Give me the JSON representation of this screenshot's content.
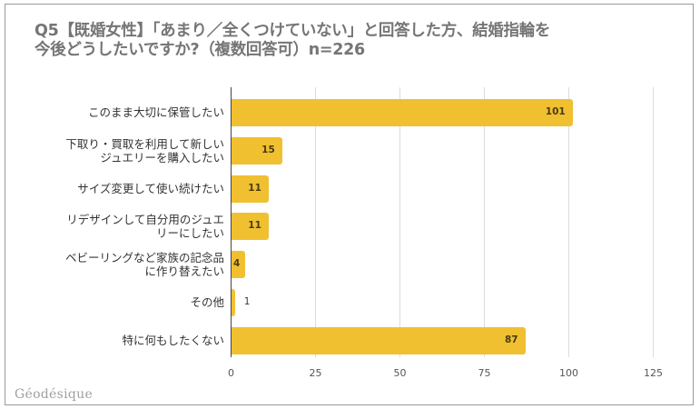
{
  "title_line1": "Q5【既婚女性】「あまり／全くつけていない」と回答した方、結婚指輪を",
  "title_line2": "今後どうしたいですか?（複数回答可）n=226",
  "brand": "Géodésique",
  "colors": {
    "bar": "#F0C030",
    "grid": "#dcdcdc",
    "axis": "#444444",
    "title": "#757575"
  },
  "chart_data": {
    "type": "bar",
    "orientation": "horizontal",
    "title": "Q5【既婚女性】「あまり／全くつけていない」と回答した方、結婚指輪を今後どうしたいですか?（複数回答可）n=226",
    "categories": [
      "このまま大切に保管したい",
      "下取り・買取を利用して新しいジュエリーを購入したい",
      "サイズ変更して使い続けたい",
      "リデザインして自分用のジュエリーにしたい",
      "ベビーリングなど家族の記念品に作り替えたい",
      "その他",
      "特に何もしたくない"
    ],
    "values": [
      101,
      15,
      11,
      11,
      4,
      1,
      87
    ],
    "xlabel": "",
    "ylabel": "",
    "xlim": [
      0,
      125
    ],
    "xticks": [
      "0",
      "25",
      "50",
      "75",
      "100",
      "125"
    ],
    "grid": true,
    "legend": "none",
    "data_labels": true
  },
  "rows": [
    {
      "line1": "このまま大切に保管したい",
      "line2": "",
      "value": "101"
    },
    {
      "line1": "下取り・買取を利用して新しい",
      "line2": "ジュエリーを購入したい",
      "value": "15"
    },
    {
      "line1": "サイズ変更して使い続けたい",
      "line2": "",
      "value": "11"
    },
    {
      "line1": "リデザインして自分用のジュエ",
      "line2": "リーにしたい",
      "value": "11"
    },
    {
      "line1": "ベビーリングなど家族の記念品",
      "line2": "に作り替えたい",
      "value": "4"
    },
    {
      "line1": "その他",
      "line2": "",
      "value": "1"
    },
    {
      "line1": "特に何もしたくない",
      "line2": "",
      "value": "87"
    }
  ],
  "ticks": [
    "0",
    "25",
    "50",
    "75",
    "100",
    "125"
  ]
}
